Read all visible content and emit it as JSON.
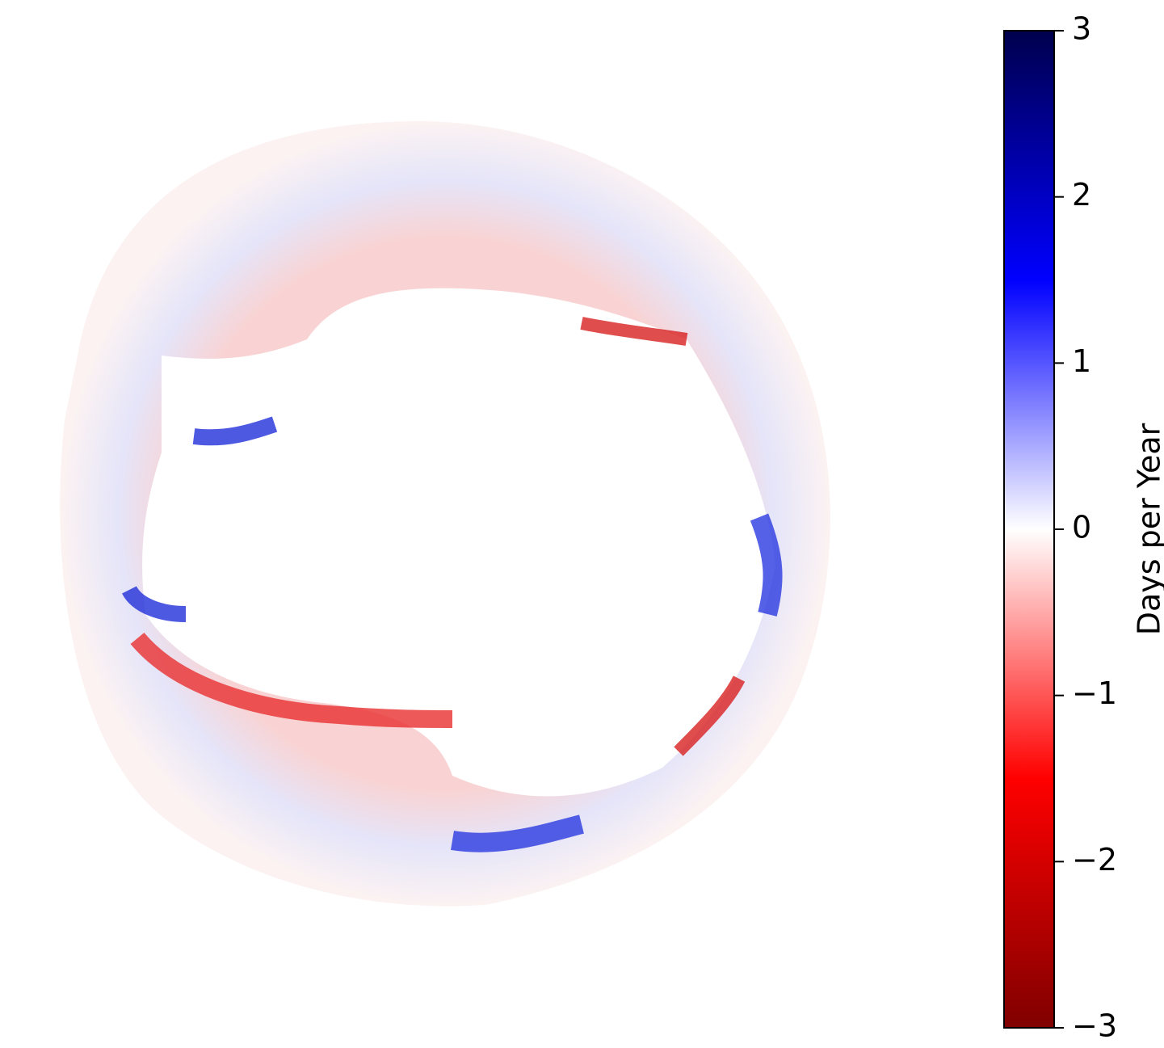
{
  "chart_data": {
    "type": "heatmap",
    "colorbar": {
      "label": "Days per Year",
      "clim": [
        -3,
        3
      ],
      "ticks": [
        {
          "value": -3,
          "label": "−3"
        },
        {
          "value": -2,
          "label": "−2"
        },
        {
          "value": -1,
          "label": "−1"
        },
        0,
        1,
        2,
        3
      ],
      "colormap": [
        "#800000",
        "#ff0000",
        "#ffffff",
        "#0000ff",
        "#00004d"
      ]
    }
  }
}
